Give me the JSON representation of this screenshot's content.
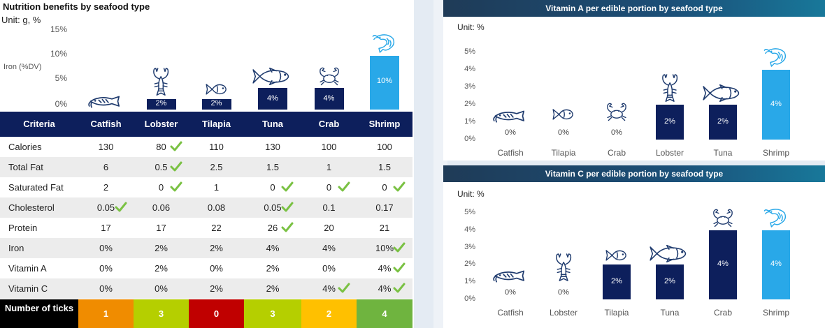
{
  "left": {
    "title": "Nutrition benefits by seafood type",
    "unit": "Unit: g, %",
    "y_ticks": [
      "15%",
      "10%",
      "5%",
      "0%"
    ],
    "iron_label": "Iron (%DV)",
    "columns": [
      "Criteria",
      "Catfish",
      "Lobster",
      "Tilapia",
      "Tuna",
      "Crab",
      "Shrimp"
    ],
    "rows": [
      {
        "label": "Calories",
        "values": [
          "130",
          "80",
          "110",
          "130",
          "100",
          "100"
        ],
        "ticks": [
          false,
          true,
          false,
          false,
          false,
          false
        ]
      },
      {
        "label": "Total Fat",
        "values": [
          "6",
          "0.5",
          "2.5",
          "1.5",
          "1",
          "1.5"
        ],
        "ticks": [
          false,
          true,
          false,
          false,
          false,
          false
        ]
      },
      {
        "label": "Saturated Fat",
        "values": [
          "2",
          "0",
          "1",
          "0",
          "0",
          "0"
        ],
        "ticks": [
          false,
          true,
          false,
          true,
          true,
          true
        ]
      },
      {
        "label": "Cholesterol",
        "values": [
          "0.05",
          "0.06",
          "0.08",
          "0.05",
          "0.1",
          "0.17"
        ],
        "ticks": [
          true,
          false,
          false,
          true,
          false,
          false
        ]
      },
      {
        "label": "Protein",
        "values": [
          "17",
          "17",
          "22",
          "26",
          "20",
          "21"
        ],
        "ticks": [
          false,
          false,
          false,
          true,
          false,
          false
        ]
      },
      {
        "label": "Iron",
        "values": [
          "0%",
          "2%",
          "2%",
          "4%",
          "4%",
          "10%"
        ],
        "ticks": [
          false,
          false,
          false,
          false,
          false,
          true
        ]
      },
      {
        "label": "Vitamin A",
        "values": [
          "0%",
          "2%",
          "0%",
          "2%",
          "0%",
          "4%"
        ],
        "ticks": [
          false,
          false,
          false,
          false,
          false,
          true
        ]
      },
      {
        "label": "Vitamin C",
        "values": [
          "0%",
          "0%",
          "2%",
          "2%",
          "4%",
          "4%"
        ],
        "ticks": [
          false,
          false,
          false,
          false,
          true,
          true
        ]
      }
    ],
    "footer_label": "Number of ticks",
    "tick_counts": [
      "1",
      "3",
      "0",
      "3",
      "2",
      "4"
    ],
    "tick_count_colors": [
      "#f08c00",
      "#b5cf00",
      "#c00000",
      "#b5cf00",
      "#ffc000",
      "#6fb43f"
    ]
  },
  "chart_data": [
    {
      "type": "bar",
      "title": "Nutrition benefits by seafood type",
      "ylabel": "Iron (%DV)",
      "categories": [
        "Catfish",
        "Lobster",
        "Tilapia",
        "Tuna",
        "Crab",
        "Shrimp"
      ],
      "values": [
        0,
        2,
        2,
        4,
        4,
        10
      ],
      "labels": [
        "",
        "2%",
        "2%",
        "4%",
        "4%",
        "10%"
      ],
      "icons": [
        "catfish-icon",
        "lobster-icon",
        "tilapia-icon",
        "tuna-icon",
        "crab-icon",
        "shrimp-icon"
      ],
      "ylim": [
        0,
        15
      ],
      "colors": [
        "#0d1f5c",
        "#0d1f5c",
        "#0d1f5c",
        "#0d1f5c",
        "#0d1f5c",
        "#29a8e8"
      ]
    },
    {
      "type": "bar",
      "title": "Vitamin A per edible portion by seafood type",
      "unit": "Unit: %",
      "categories": [
        "Catfish",
        "Tilapia",
        "Crab",
        "Lobster",
        "Tuna",
        "Shrimp"
      ],
      "values": [
        0,
        0,
        0,
        2,
        2,
        4
      ],
      "labels": [
        "0%",
        "0%",
        "0%",
        "2%",
        "2%",
        "4%"
      ],
      "icons": [
        "catfish-icon",
        "tilapia-icon",
        "crab-icon",
        "lobster-icon",
        "tuna-icon",
        "shrimp-icon"
      ],
      "y_ticks": [
        "5%",
        "4%",
        "3%",
        "2%",
        "1%",
        "0%"
      ],
      "ylim": [
        0,
        5
      ],
      "colors": [
        "#0d1f5c",
        "#0d1f5c",
        "#0d1f5c",
        "#0d1f5c",
        "#0d1f5c",
        "#29a8e8"
      ]
    },
    {
      "type": "bar",
      "title": "Vitamin C per edible portion by seafood type",
      "unit": "Unit: %",
      "categories": [
        "Catfish",
        "Lobster",
        "Tilapia",
        "Tuna",
        "Crab",
        "Shrimp"
      ],
      "values": [
        0,
        0,
        2,
        2,
        4,
        4
      ],
      "labels": [
        "0%",
        "0%",
        "2%",
        "2%",
        "4%",
        "4%"
      ],
      "icons": [
        "catfish-icon",
        "lobster-icon",
        "tilapia-icon",
        "tuna-icon",
        "crab-icon",
        "shrimp-icon"
      ],
      "y_ticks": [
        "5%",
        "4%",
        "3%",
        "2%",
        "1%",
        "0%"
      ],
      "ylim": [
        0,
        5
      ],
      "colors": [
        "#0d1f5c",
        "#0d1f5c",
        "#0d1f5c",
        "#0d1f5c",
        "#0d1f5c",
        "#29a8e8"
      ]
    }
  ],
  "colors": {
    "navy": "#0d1f5c",
    "shrimp_blue": "#29a8e8",
    "icon_navy": "#1f3b6e",
    "icon_blue": "#29a8e8",
    "tick_green": "#7ac143"
  }
}
